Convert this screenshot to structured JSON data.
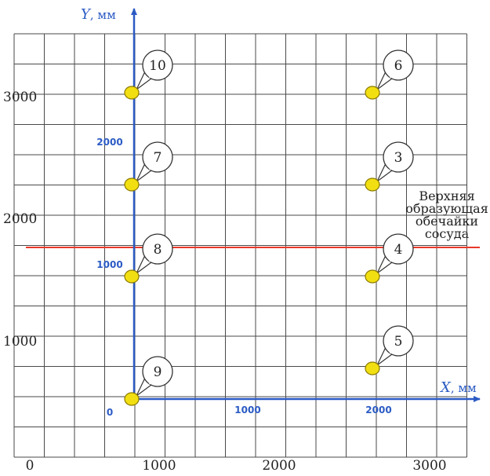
{
  "outer_axis": {
    "origin_label": "0",
    "x_tick_labels": [
      "1000",
      "2000",
      "3000"
    ],
    "y_tick_labels": [
      "1000",
      "2000",
      "3000"
    ]
  },
  "inner_axis": {
    "x_label_var": "X",
    "x_label_unit": ", мм",
    "y_label_var": "Y",
    "y_label_unit": ", мм",
    "origin_label": "0",
    "x_tick_labels": [
      "1000",
      "2000"
    ],
    "y_tick_labels": [
      "1000",
      "2000"
    ]
  },
  "generatrix": {
    "label_lines": [
      "Верхняя",
      "образующая",
      "обечайки",
      "сосуда"
    ],
    "color": "#e8392a"
  },
  "points": [
    {
      "label": "10",
      "x": 0,
      "y": 2500
    },
    {
      "label": "6",
      "x": 2000,
      "y": 2500
    },
    {
      "label": "7",
      "x": 0,
      "y": 1750
    },
    {
      "label": "3",
      "x": 2000,
      "y": 1750
    },
    {
      "label": "8",
      "x": 0,
      "y": 1000
    },
    {
      "label": "4",
      "x": 2000,
      "y": 1000
    },
    {
      "label": "5",
      "x": 2000,
      "y": 250
    },
    {
      "label": "9",
      "x": 0,
      "y": 0
    }
  ],
  "colors": {
    "axis": "#2b5bc4",
    "point_fill": "#f2df12",
    "point_stroke": "#8a7a00",
    "grid": "#4a4a4a"
  }
}
